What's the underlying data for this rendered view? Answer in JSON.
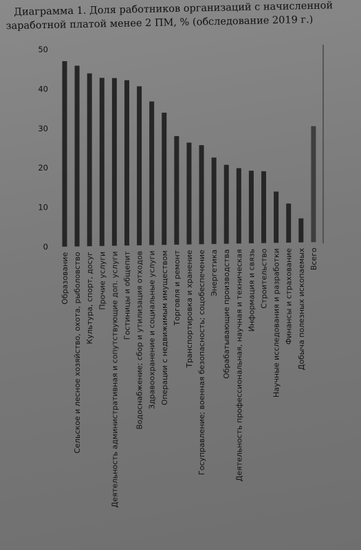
{
  "chart_data": {
    "type": "bar",
    "title_line1": "Диаграмма 1. Доля работников организаций с начисленной",
    "title_line2": "заработной платой менее 2 ПМ, % (обследование 2019 г.)",
    "xlabel": "",
    "ylabel": "",
    "ylim": [
      0,
      50
    ],
    "yticks": [
      0,
      10,
      20,
      30,
      40,
      50
    ],
    "grid": false,
    "bar_color": "#262626",
    "highlight_color": "#3e3e3e",
    "categories": [
      "Образование",
      "Сельское и лесное хозяйство, охота, рыболовство",
      "Культура, спорт, досуг",
      "Прочие услуги",
      "Деятельность административная и сопутствующие доп. услуги",
      "Гостиницы и общепит",
      "Водоснабжение; сбор и утилизация отходов",
      "Здравоохранение и социальные услуги",
      "Операции с недвижимым имуществом",
      "Торговля и ремонт",
      "Транспортировка и хранение",
      "Госуправление; военная безопасность; соцобеспечение",
      "Энергетика",
      "Обрабатывающие производства",
      "Деятельность профессиональная, научная и техническая",
      "Информация и связь",
      "Строительство",
      "Научные исследования и разработки",
      "Финансы и страхование",
      "Добыча полезных ископаемых",
      "Всего"
    ],
    "values": [
      47,
      45.8,
      43.8,
      42.6,
      42.5,
      41.9,
      40.3,
      36.4,
      33.5,
      27.5,
      25.8,
      25.1,
      21.9,
      20,
      19.1,
      18.4,
      18.2,
      13,
      9.9,
      6.1,
      29.4
    ]
  }
}
